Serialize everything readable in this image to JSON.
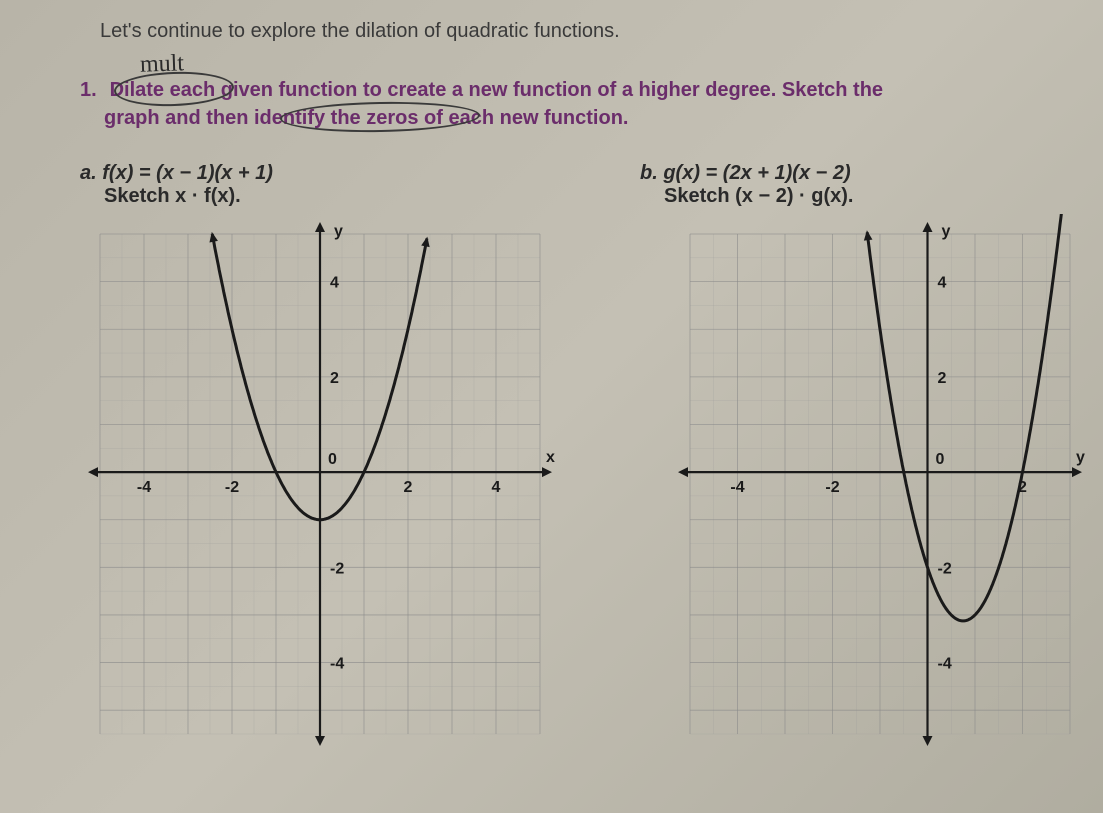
{
  "intro": "Let's continue to explore the dilation of quadratic functions.",
  "handwritten": "mult",
  "question_num": "1.",
  "question_text_l1": "Dilate each given function to create a new function of a higher degree. Sketch the",
  "question_text_l2": "graph and then identify the zeros of each new function.",
  "problems": {
    "a": {
      "letter": "a.",
      "func": "f(x) = (x − 1)(x + 1)",
      "sketch": "Sketch x · f(x).",
      "chart": {
        "type": "cartesian",
        "xlim": [
          -5,
          5
        ],
        "ylim": [
          -5.5,
          5
        ],
        "xtick_labels": [
          "-4",
          "-2",
          "0",
          "2",
          "4"
        ],
        "xtick_vals": [
          -4,
          -2,
          0,
          2,
          4
        ],
        "ytick_labels": [
          "4",
          "2",
          "-2",
          "-4"
        ],
        "ytick_vals": [
          4,
          2,
          -2,
          -4
        ],
        "x_axis_label": "x",
        "y_axis_label": "y",
        "curve_color": "#1a1a1a",
        "grid_color": "#888888",
        "curve_points_x": [
          -1.4,
          -1.2,
          -1,
          -0.8,
          -0.6,
          -0.4,
          -0.2,
          0,
          0.2,
          0.4,
          0.6,
          0.8,
          1,
          1.2,
          1.4,
          1.6,
          1.8,
          2.0,
          2.2,
          2.35
        ],
        "curve_formula": "x*x - 1",
        "curve_y_top": 5
      }
    },
    "b": {
      "letter": "b.",
      "func": "g(x) = (2x + 1)(x − 2)",
      "sketch": "Sketch (x − 2) · g(x).",
      "chart": {
        "type": "cartesian",
        "xlim": [
          -5,
          3
        ],
        "ylim": [
          -5.5,
          5
        ],
        "xtick_labels": [
          "-4",
          "-2",
          "0",
          "2"
        ],
        "xtick_vals": [
          -4,
          -2,
          0,
          2
        ],
        "ytick_labels": [
          "4",
          "2",
          "-2",
          "-4"
        ],
        "ytick_vals": [
          4,
          2,
          -2,
          -4
        ],
        "x_axis_label": "y",
        "y_axis_label": "y",
        "curve_color": "#1a1a1a",
        "grid_color": "#888888",
        "curve_points_x": [
          -0.7,
          -0.5,
          -0.3,
          0,
          0.25,
          0.5,
          0.75,
          1.0,
          1.25,
          1.5,
          1.75,
          2.0,
          2.1
        ],
        "curve_formula": "(2*x+1)*(x-2)",
        "curve_y_top": 5,
        "curve_y_bot": -5.5
      }
    }
  }
}
